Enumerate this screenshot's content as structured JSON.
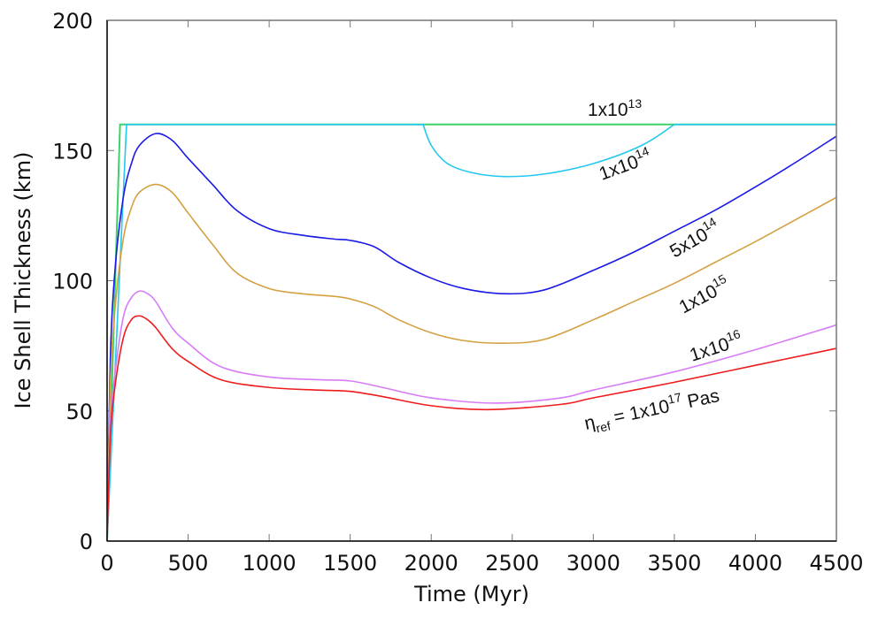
{
  "chart_data": {
    "type": "line",
    "title": "",
    "xlabel": "Time (Myr)",
    "ylabel": "Ice Shell Thickness (km)",
    "xlim": [
      0,
      4500
    ],
    "ylim": [
      0,
      200
    ],
    "grid": false,
    "legend": "inline curve labels",
    "xticks": [
      0,
      500,
      1000,
      1500,
      2000,
      2500,
      3000,
      3500,
      4000,
      4500
    ],
    "yticks": [
      0,
      50,
      100,
      150,
      200
    ],
    "series": [
      {
        "name": "1x10^13",
        "label_base": "1x10",
        "label_exp": "13",
        "color": "#3dd16a",
        "x": [
          0,
          80,
          500,
          1000,
          2000,
          3000,
          4500
        ],
        "values": [
          0,
          160,
          160,
          160,
          160,
          160,
          160
        ]
      },
      {
        "name": "1x10^14",
        "label_base": "1x10",
        "label_exp": "14",
        "color": "#22c8f0",
        "x": [
          0,
          120,
          1000,
          1950,
          2000,
          2100,
          2250,
          2450,
          2700,
          3000,
          3300,
          3500,
          4500
        ],
        "values": [
          0,
          160,
          160,
          160,
          152,
          145,
          141.5,
          140,
          141,
          145,
          152,
          160,
          160
        ]
      },
      {
        "name": "5x10^14",
        "label_base": "5x10",
        "label_exp": "14",
        "color": "#1a1ae6",
        "x": [
          0,
          20,
          50,
          100,
          150,
          200,
          300,
          400,
          500,
          650,
          800,
          1000,
          1200,
          1400,
          1500,
          1650,
          1800,
          2000,
          2200,
          2450,
          2700,
          3000,
          3250,
          3500,
          3750,
          4000,
          4250,
          4500
        ],
        "values": [
          0,
          70,
          105,
          132,
          145,
          152,
          156.5,
          154,
          147,
          137,
          127,
          120,
          117.5,
          116,
          115.5,
          113,
          107,
          101,
          97,
          95,
          96.5,
          104,
          111,
          119,
          127,
          136,
          145.5,
          155.5
        ]
      },
      {
        "name": "1x10^15",
        "label_base": "1x10",
        "label_exp": "15",
        "color": "#d4a040",
        "x": [
          0,
          20,
          50,
          100,
          150,
          200,
          300,
          400,
          500,
          650,
          800,
          1000,
          1200,
          1400,
          1500,
          1650,
          1800,
          2000,
          2200,
          2450,
          2700,
          3000,
          3250,
          3500,
          3750,
          4000,
          4250,
          4500
        ],
        "values": [
          0,
          60,
          90,
          116,
          128,
          134,
          137,
          134,
          126,
          114,
          103,
          97,
          95,
          94,
          93,
          90,
          85,
          80,
          77,
          76,
          77.5,
          85,
          92,
          99,
          107,
          115,
          123.5,
          132
        ]
      },
      {
        "name": "1x10^16",
        "label_base": "1x10",
        "label_exp": "16",
        "color": "#d77cf5",
        "x": [
          0,
          20,
          50,
          100,
          150,
          200,
          250,
          300,
          400,
          500,
          700,
          1000,
          1300,
          1500,
          1700,
          2000,
          2400,
          2800,
          3000,
          3500,
          4000,
          4500
        ],
        "values": [
          0,
          45,
          65,
          86,
          93.5,
          96,
          95,
          92,
          82,
          76,
          67,
          63,
          62,
          61.5,
          59,
          55,
          53,
          55,
          58,
          65,
          73.5,
          83
        ]
      },
      {
        "name": "1x10^17 Pas (eta_ref)",
        "label_prefix": "η",
        "label_sub": "ref",
        "label_eq": " = 1x10",
        "label_exp": "17",
        "label_unit": " Pas",
        "color": "#ee1c1c",
        "x": [
          0,
          20,
          50,
          100,
          150,
          200,
          250,
          300,
          400,
          500,
          700,
          1000,
          1300,
          1500,
          1700,
          2000,
          2350,
          2800,
          3000,
          3500,
          4000,
          4500
        ],
        "values": [
          0,
          40,
          60,
          78,
          85,
          86.5,
          85,
          82,
          74,
          69,
          62,
          59,
          58,
          57.5,
          55.5,
          52,
          50.5,
          52.5,
          55,
          61,
          67.5,
          74
        ]
      }
    ]
  }
}
